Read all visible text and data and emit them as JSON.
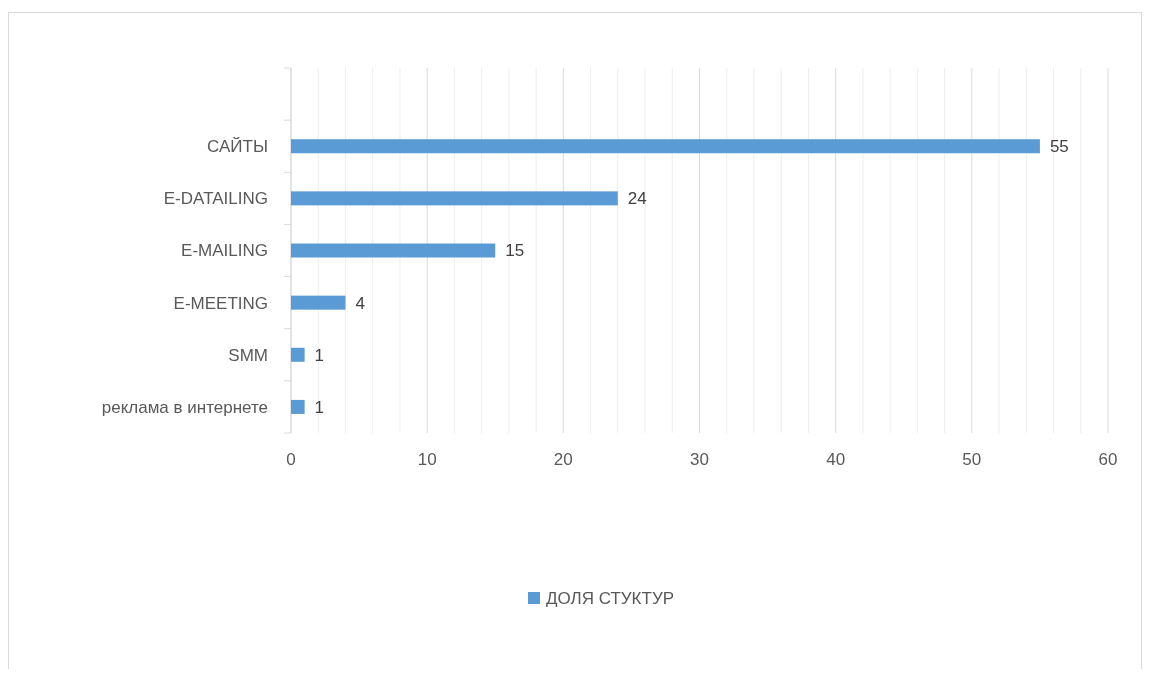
{
  "chart_data": {
    "type": "bar",
    "orientation": "horizontal",
    "categories": [
      null,
      "САЙТЫ",
      "E-DATAILING",
      "E-MAILING",
      "E-MEETING",
      "SMM",
      "реклама в интернете"
    ],
    "series": [
      {
        "name": "ДОЛЯ СТУКТУР",
        "color": "#5b9bd5",
        "values": [
          null,
          55,
          24,
          15,
          4,
          1,
          1
        ]
      }
    ],
    "xlim": [
      0,
      60
    ],
    "xticks": [
      0,
      {
        "value": 2,
        "label": null
      },
      {
        "value": 4,
        "label": null
      },
      {
        "value": 6,
        "label": null
      },
      {
        "value": 8,
        "label": null
      },
      10,
      {
        "value": 12,
        "label": null
      },
      {
        "value": 14,
        "label": null
      },
      {
        "value": 16,
        "label": null
      },
      {
        "value": 18,
        "label": null
      },
      20,
      {
        "value": 22,
        "label": null
      },
      {
        "value": 24,
        "label": null
      },
      {
        "value": 26,
        "label": null
      },
      {
        "value": 28,
        "label": null
      },
      30,
      {
        "value": 32,
        "label": null
      },
      {
        "value": 34,
        "label": null
      },
      {
        "value": 36,
        "label": null
      },
      {
        "value": 38,
        "label": null
      },
      40,
      {
        "value": 42,
        "label": null
      },
      {
        "value": 44,
        "label": null
      },
      {
        "value": 46,
        "label": null
      },
      {
        "value": 48,
        "label": null
      },
      50,
      {
        "value": 52,
        "label": null
      },
      {
        "value": 54,
        "label": null
      },
      {
        "value": 56,
        "label": null
      },
      {
        "value": 58,
        "label": null
      },
      60
    ],
    "grid": "x",
    "data_labels": true,
    "legend": "bottom"
  }
}
